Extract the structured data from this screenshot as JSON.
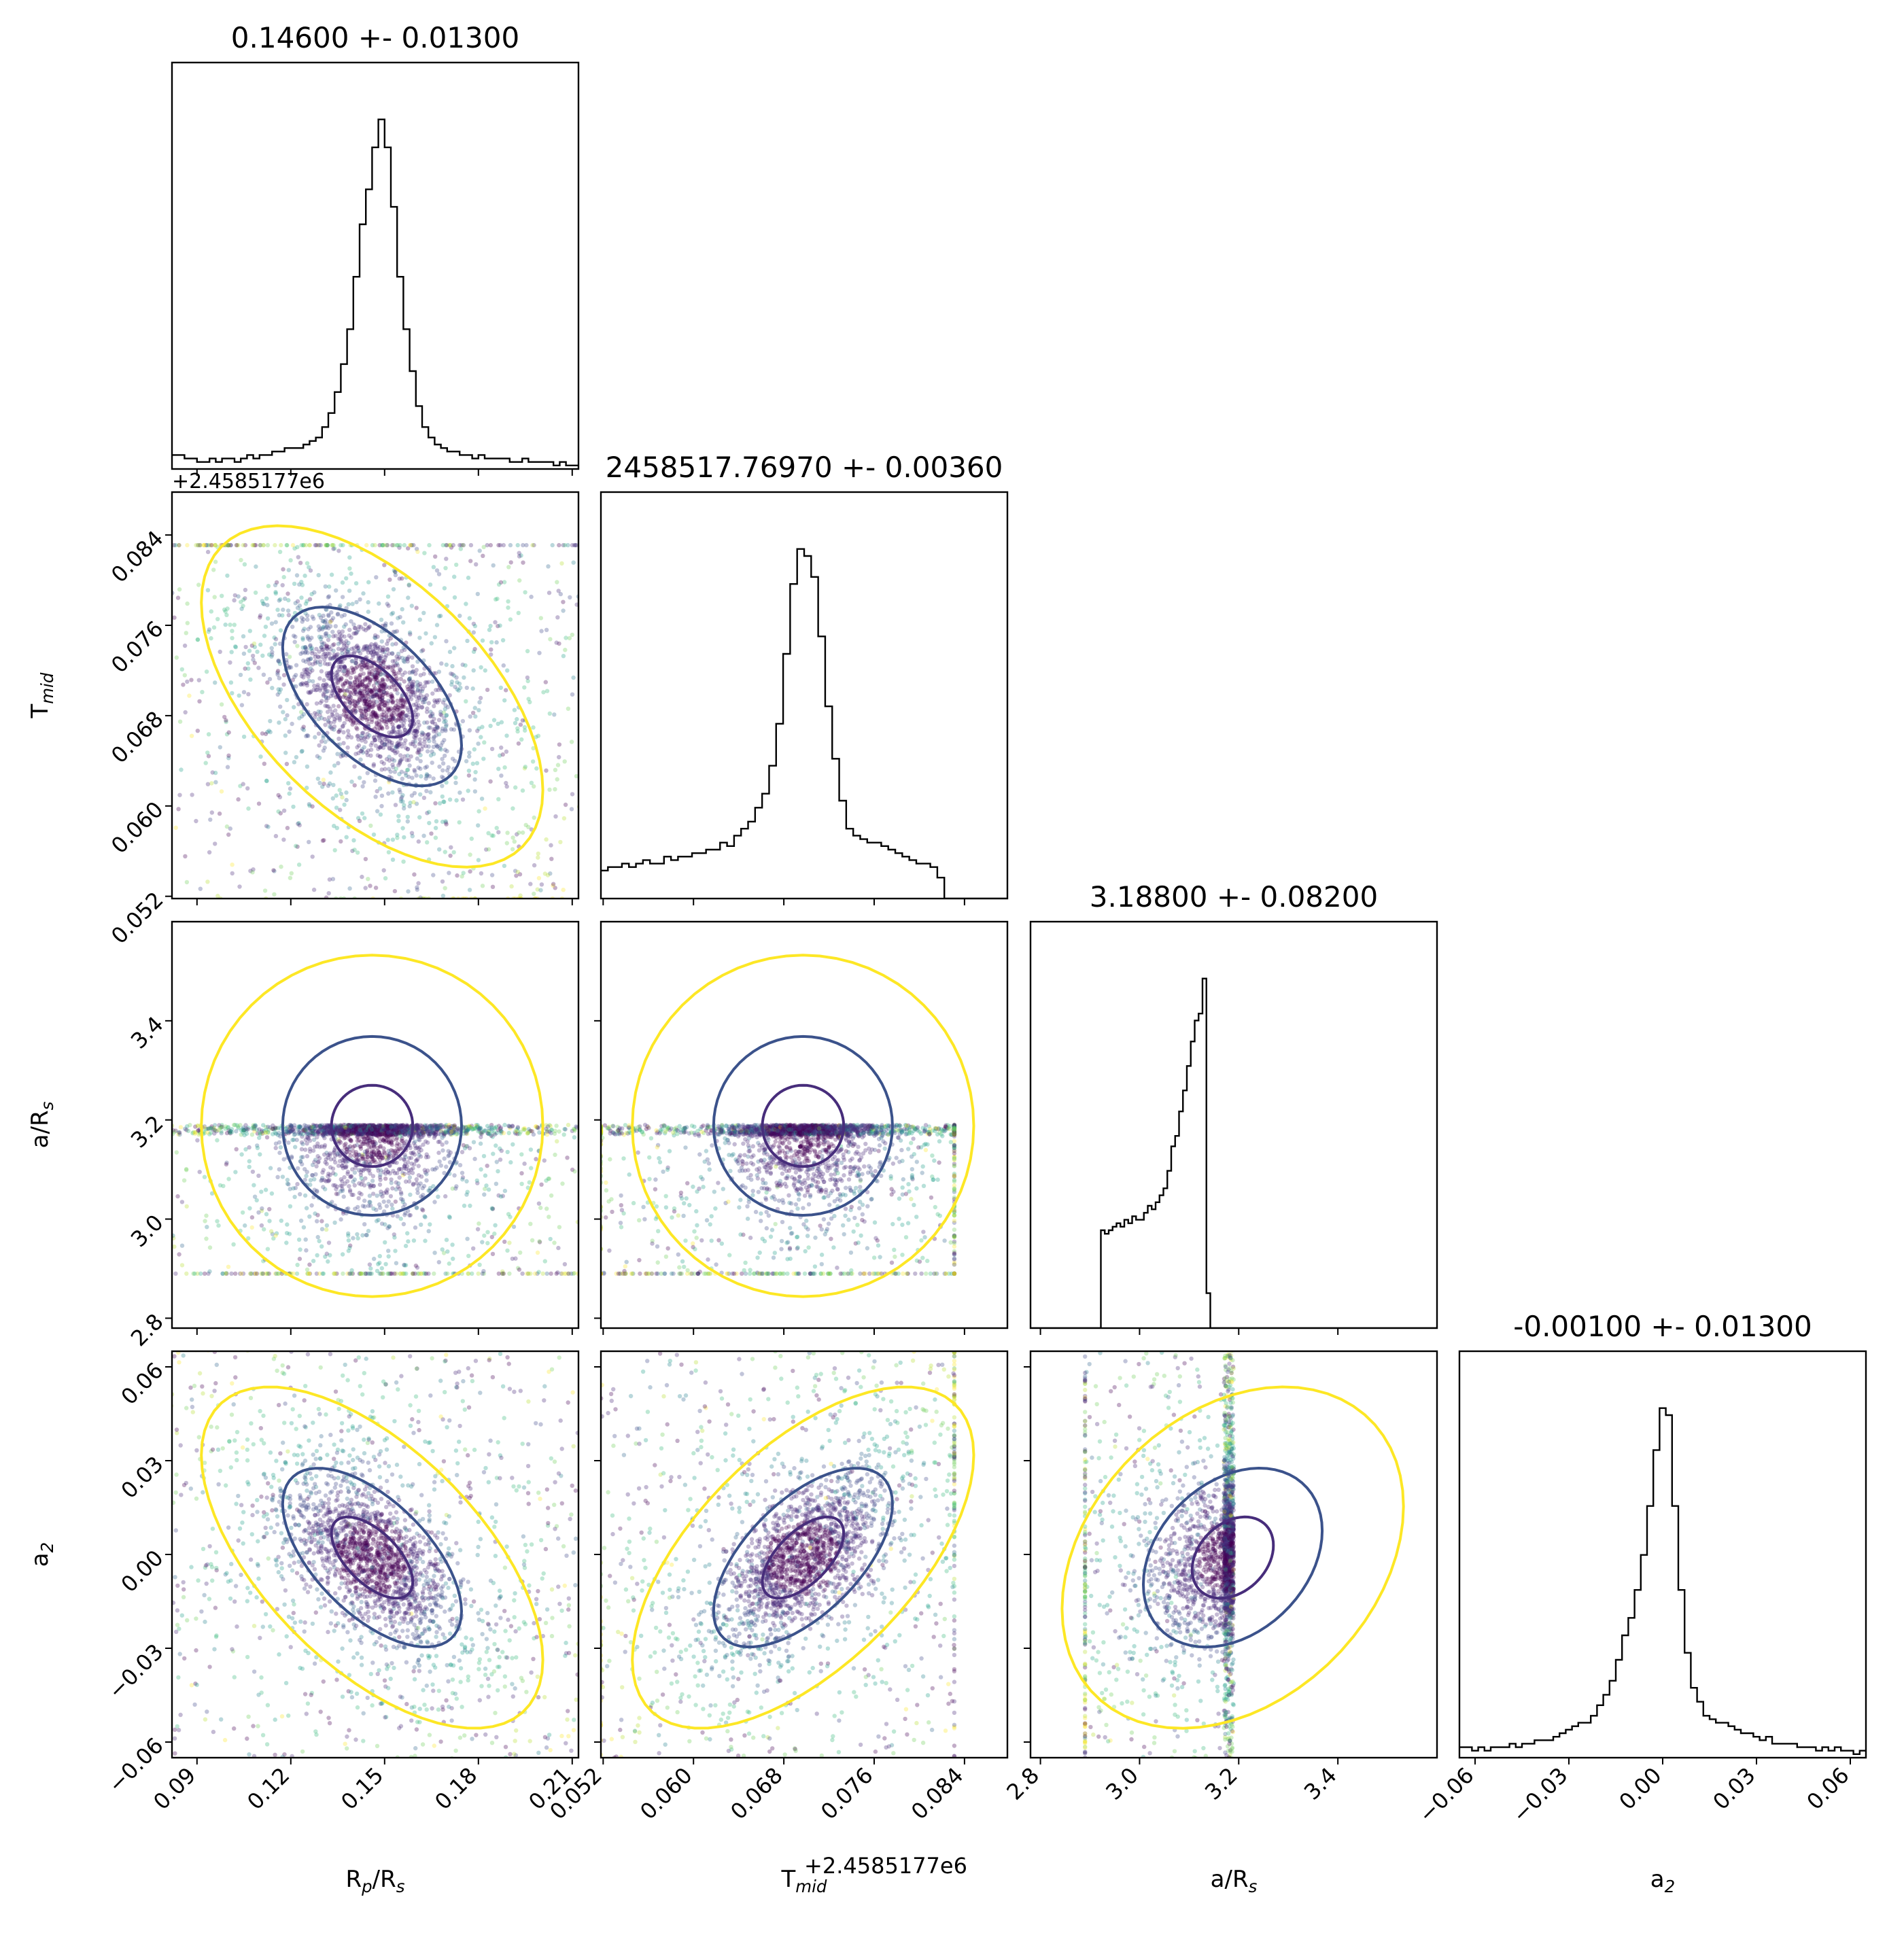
{
  "chart_data": {
    "type": "corner",
    "parameters": [
      {
        "key": "rp",
        "label": "R",
        "label_sub": "p",
        "label_mid": "/R",
        "label_sub2": "s",
        "title": "0.14600 +- 0.01300",
        "range": [
          0.082,
          0.212
        ],
        "ticks": [
          0.09,
          0.12,
          0.15,
          0.18,
          0.21
        ],
        "tick_labels": [
          "0.09",
          "0.12",
          "0.15",
          "0.18",
          "0.21"
        ],
        "median": 0.146,
        "sigma": 0.013
      },
      {
        "key": "tmid",
        "label": "T",
        "label_sub": "mid",
        "label_mid": "",
        "label_sub2": "",
        "offset_text": "+2.4585177e6",
        "title": "2458517.76970 +- 0.00360",
        "range": [
          0.0518,
          0.0878
        ],
        "ticks": [
          0.052,
          0.06,
          0.068,
          0.076,
          0.084
        ],
        "tick_labels": [
          "0.052",
          "0.060",
          "0.068",
          "0.076",
          "0.084"
        ],
        "median": 0.0697,
        "sigma": 0.0036
      },
      {
        "key": "ars",
        "label": "a/R",
        "label_sub": "s",
        "label_mid": "",
        "label_sub2": "",
        "title": "3.18800 +- 0.08200",
        "range": [
          2.78,
          3.6
        ],
        "ticks": [
          2.8,
          3.0,
          3.2,
          3.4
        ],
        "tick_labels": [
          "2.8",
          "3.0",
          "3.2",
          "3.4"
        ],
        "median": 3.188,
        "sigma": 0.082
      },
      {
        "key": "a2",
        "label": "a",
        "label_sub": "2",
        "label_mid": "",
        "label_sub2": "",
        "title": "-0.00100 +- 0.01300",
        "range": [
          -0.065,
          0.065
        ],
        "ticks": [
          -0.06,
          -0.03,
          0.0,
          0.03,
          0.06
        ],
        "tick_labels": [
          "−0.06",
          "−0.03",
          "0.00",
          "0.03",
          "0.06"
        ],
        "median": -0.001,
        "sigma": 0.013
      }
    ],
    "histograms": [
      {
        "param": "rp",
        "bin_edges": [
          0.082,
          0.212
        ],
        "counts": [
          4,
          4,
          3,
          3,
          2,
          2,
          3,
          2,
          3,
          3,
          2,
          3,
          4,
          3,
          4,
          4,
          5,
          5,
          6,
          6,
          6,
          7,
          8,
          9,
          12,
          16,
          22,
          30,
          40,
          55,
          70,
          80,
          92,
          100,
          92,
          75,
          55,
          40,
          28,
          18,
          12,
          9,
          7,
          6,
          5,
          5,
          4,
          4,
          3,
          4,
          3,
          3,
          3,
          3,
          2,
          2,
          3,
          2,
          2,
          2,
          2,
          1,
          2,
          1,
          1
        ],
        "peak": 100
      },
      {
        "param": "tmid",
        "bin_edges": [
          0.0518,
          0.0878
        ],
        "counts": [
          8,
          9,
          9,
          10,
          9,
          10,
          11,
          10,
          10,
          12,
          11,
          12,
          12,
          13,
          13,
          14,
          14,
          16,
          15,
          18,
          20,
          22,
          26,
          30,
          38,
          50,
          70,
          90,
          100,
          98,
          92,
          75,
          55,
          40,
          28,
          20,
          18,
          17,
          16,
          16,
          15,
          14,
          13,
          12,
          11,
          10,
          10,
          9,
          6,
          0,
          0,
          0,
          0,
          0,
          0,
          0,
          0,
          0
        ],
        "peak": 100
      },
      {
        "param": "ars",
        "bin_edges": [
          2.78,
          3.6
        ],
        "counts": [
          0,
          0,
          0,
          0,
          0,
          0,
          0,
          0,
          0,
          0,
          0,
          0,
          0,
          0,
          0,
          0,
          0,
          0,
          28,
          27,
          28,
          29,
          30,
          29,
          31,
          30,
          32,
          31,
          31,
          33,
          35,
          34,
          36,
          38,
          40,
          45,
          52,
          55,
          62,
          68,
          75,
          82,
          88,
          90,
          100,
          10,
          0,
          0,
          0,
          0,
          0,
          0,
          0,
          0,
          0,
          0,
          0,
          0,
          0,
          0,
          0,
          0,
          0,
          0,
          0,
          0,
          0,
          0,
          0,
          0,
          0,
          0,
          0,
          0,
          0,
          0,
          0,
          0,
          0,
          0,
          0,
          0,
          0,
          0,
          0,
          0,
          0,
          0,
          0,
          0,
          0,
          0,
          0,
          0,
          0,
          0,
          0,
          0,
          0,
          0,
          0,
          0,
          0,
          0
        ],
        "peak": 100
      },
      {
        "param": "a2",
        "bin_edges": [
          -0.065,
          0.065
        ],
        "counts": [
          3,
          3,
          2,
          3,
          2,
          3,
          3,
          3,
          4,
          3,
          4,
          4,
          5,
          5,
          5,
          6,
          7,
          8,
          9,
          10,
          10,
          12,
          15,
          18,
          22,
          28,
          35,
          40,
          48,
          58,
          72,
          88,
          100,
          98,
          72,
          48,
          30,
          20,
          16,
          12,
          11,
          10,
          10,
          9,
          8,
          7,
          7,
          6,
          5,
          6,
          4,
          4,
          4,
          4,
          3,
          3,
          3,
          2,
          3,
          2,
          3,
          2,
          2,
          1,
          2
        ],
        "peak": 100
      }
    ],
    "pairs": [
      {
        "x": "rp",
        "y": "tmid",
        "corr": -0.55
      },
      {
        "x": "rp",
        "y": "ars",
        "corr": 0.0
      },
      {
        "x": "tmid",
        "y": "ars",
        "corr": 0.0
      },
      {
        "x": "rp",
        "y": "a2",
        "corr": -0.6
      },
      {
        "x": "tmid",
        "y": "a2",
        "corr": 0.6
      },
      {
        "x": "ars",
        "y": "a2",
        "corr": 0.3
      }
    ],
    "colors": {
      "histogram_line": "#000000",
      "contour_inner": "#472d7b",
      "contour_outer": "#3b528b",
      "contour_far": "#fde725",
      "scatter_palette": [
        "#440154",
        "#482878",
        "#3e4989",
        "#31688e",
        "#26828e",
        "#1f9e89",
        "#35b779",
        "#6ece58",
        "#b5de2b",
        "#fde725"
      ]
    }
  }
}
